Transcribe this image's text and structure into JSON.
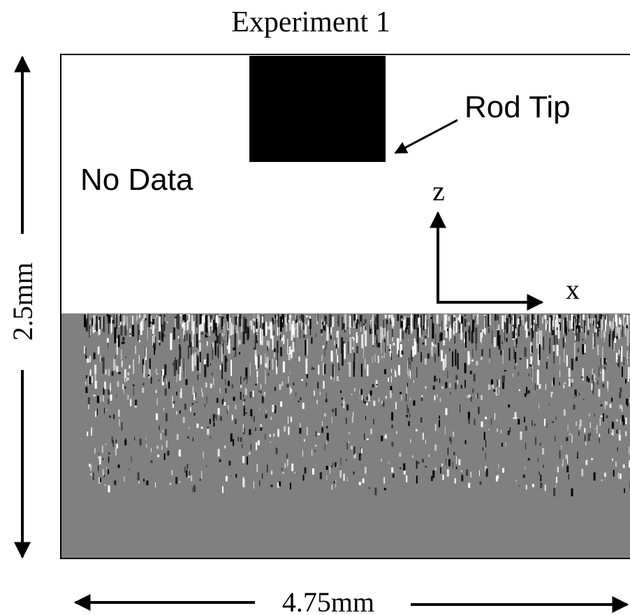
{
  "title": "Experiment 1",
  "labels": {
    "rod_tip": "Rod Tip",
    "no_data": "No Data",
    "z_axis": "z",
    "x_axis": "x",
    "height": "2.5mm",
    "width": "4.75mm"
  }
}
